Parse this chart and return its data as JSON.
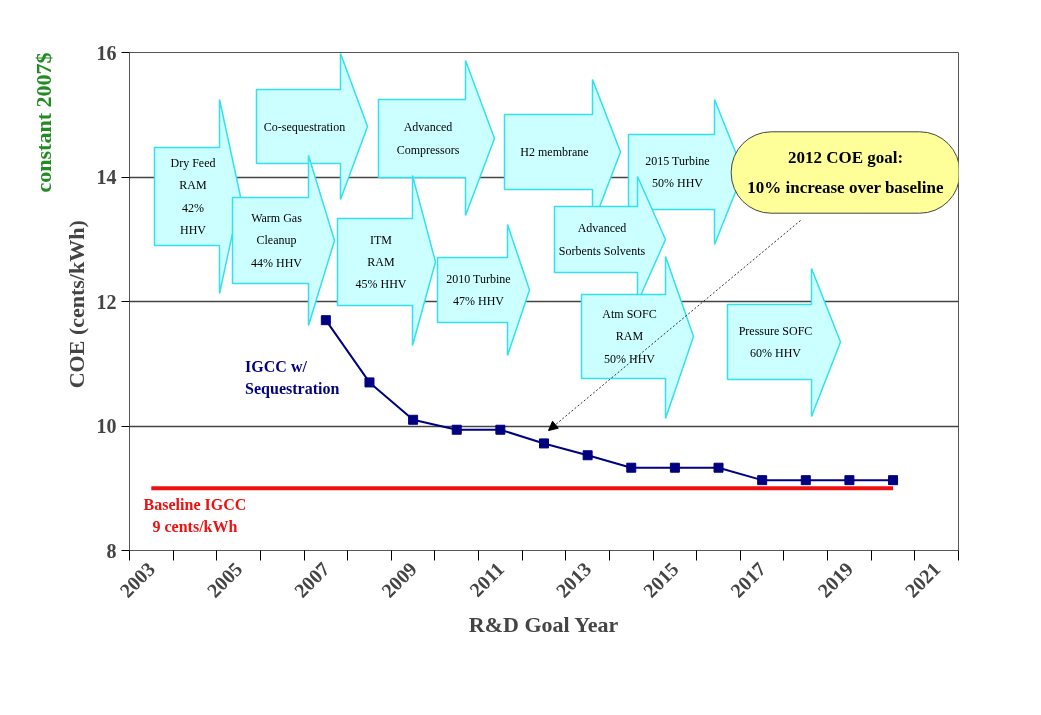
{
  "chart_data": {
    "type": "line",
    "xlabel": "R&D Goal Year",
    "ylabel": "COE  (cents/kWh)",
    "categories": [
      "2003",
      null,
      "2005",
      null,
      "2007",
      null,
      "2009",
      null,
      "2011",
      null,
      "2013",
      null,
      "2015",
      null,
      "2017",
      null,
      "2019",
      null,
      "2021"
    ],
    "ylim": [
      8,
      16
    ],
    "yticks": [
      8,
      10,
      12,
      14,
      16
    ],
    "grid": "y",
    "marker": "square",
    "series": [
      {
        "name": "IGCC w/\nSequestration",
        "color": "#000080",
        "values": [
          null,
          null,
          null,
          null,
          11.7,
          10.7,
          10.1,
          9.94,
          9.94,
          9.72,
          9.53,
          9.33,
          9.33,
          9.33,
          9.13,
          9.13,
          9.13,
          9.13,
          null
        ]
      },
      {
        "name": "Baseline IGCC\n9 cents/kWh",
        "color": "#ee1111",
        "marker": "none",
        "values": [
          9,
          9,
          9,
          9,
          9,
          9,
          9,
          9,
          9,
          9,
          9,
          9,
          9,
          9,
          9,
          9,
          9,
          9,
          null
        ]
      }
    ],
    "annotations": [
      "Dry Feed\nRAM\n42%\nHHV",
      "Co-sequestration",
      "Warm Gas\nCleanup\n44% HHV",
      "Advanced\nCompressors",
      "ITM\nRAM\n45% HHV",
      "2010 Turbine\n47% HHV",
      "H2 membrane",
      "2015 Turbine\n50% HHV",
      "Advanced\nSorbents Solvents",
      "Atm SOFC\nRAM\n50% HHV",
      "Pressure SOFC\n60% HHV",
      "constant 2007$",
      "2012 COE goal:\n10% increase over baseline"
    ]
  }
}
